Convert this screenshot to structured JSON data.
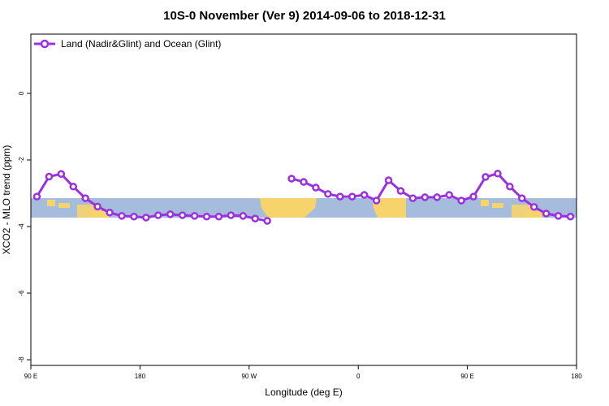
{
  "chart_data": {
    "type": "line",
    "title": "10S-0 November (Ver 9)   2014-09-06 to 2018-12-31",
    "x_label": "Longitude (deg E)",
    "y_label": "XCO2 - MLO trend (ppm)",
    "x": [
      95,
      105,
      115,
      125,
      135,
      145,
      155,
      165,
      175,
      185,
      195,
      205,
      215,
      225,
      235,
      245,
      255,
      265,
      275,
      285,
      295,
      305,
      315,
      325,
      335,
      345,
      355,
      365,
      375,
      385,
      395,
      405,
      415,
      425,
      435,
      445,
      455,
      465,
      475,
      485,
      495,
      505,
      515,
      525,
      535
    ],
    "series": [
      {
        "name": "Land (Nadir&Glint) and Ocean (Glint)",
        "color": "#9b30e0",
        "values": [
          -3.1,
          -2.5,
          -2.42,
          -2.8,
          -3.15,
          -3.4,
          -3.58,
          -3.68,
          -3.7,
          -3.73,
          -3.66,
          -3.63,
          -3.66,
          -3.68,
          -3.7,
          -3.7,
          -3.66,
          -3.68,
          -3.76,
          -3.83,
          null,
          -2.56,
          -2.66,
          -2.83,
          -3.02,
          -3.1,
          -3.1,
          -3.05,
          -3.22,
          -2.61,
          -2.93,
          -3.15,
          -3.12,
          -3.12,
          -3.05,
          -3.22,
          -3.1,
          -2.51,
          -2.41,
          -2.8,
          -3.15,
          -3.41,
          -3.61,
          -3.68,
          -3.7
        ]
      }
    ],
    "xlim": [
      90,
      540
    ],
    "xticks": [
      {
        "value": 90,
        "label": "90 E"
      },
      180,
      {
        "value": 270,
        "label": "90 W"
      },
      {
        "value": 360,
        "label": "0"
      },
      {
        "value": 450,
        "label": "90 E"
      },
      {
        "value": 540,
        "label": "180"
      }
    ],
    "ylim": [
      -8.17,
      1.78
    ],
    "yticks": [
      0,
      -2,
      -4,
      -6,
      -8
    ],
    "legend": "top-left"
  }
}
